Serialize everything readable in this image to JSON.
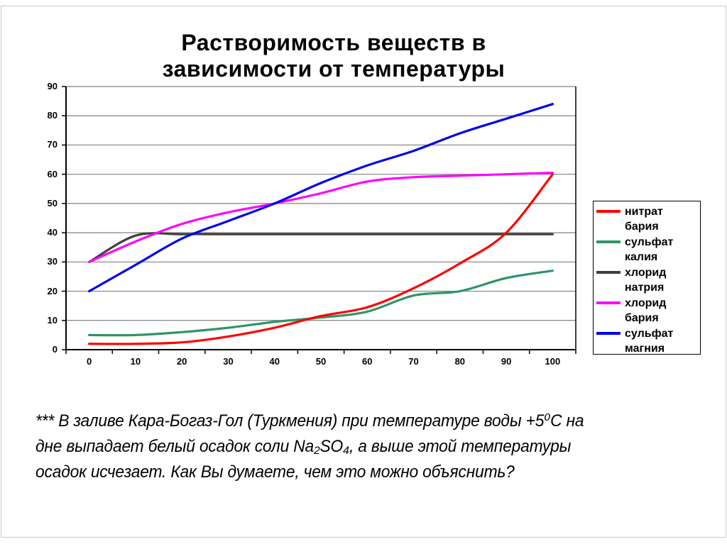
{
  "page": {
    "footnote_lines": [
      "*** В заливе Кара-Богаз-Гол (Туркмения) при температуре воды +5⁰С на",
      "дне выпадает белый осадок соли Na₂SO₄, а выше этой температуры",
      "осадок исчезает. Как Вы думаете, чем это можно объяснить?"
    ]
  },
  "chart_data": {
    "type": "line",
    "title": "Растворимость веществ в зависимости от температуры",
    "xlabel": "",
    "ylabel": "",
    "x": [
      0,
      10,
      20,
      30,
      40,
      50,
      60,
      70,
      80,
      90,
      100
    ],
    "ylim": [
      0,
      90
    ],
    "ytick_step": 10,
    "grid": true,
    "legend_position": "right",
    "axis_color": "#000000",
    "gridline_color": "#808080",
    "series": [
      {
        "name": "нитрат бария",
        "color": "#FF0000",
        "values": [
          2,
          2,
          2.5,
          4.5,
          7.5,
          11.5,
          14.5,
          21,
          29.5,
          40,
          60
        ]
      },
      {
        "name": "сульфат калия",
        "color": "#2E9566",
        "values": [
          5,
          5,
          6,
          7.5,
          9.5,
          11,
          13,
          18.5,
          20,
          24.5,
          27
        ]
      },
      {
        "name": "хлорид натрия",
        "color": "#3F3F3F",
        "values": [
          30,
          39,
          39.5,
          39.5,
          39.5,
          39.5,
          39.5,
          39.5,
          39.5,
          39.5,
          39.5
        ]
      },
      {
        "name": "хлорид бария",
        "color": "#FF00FF",
        "values": [
          30,
          37,
          43,
          47,
          50,
          53.5,
          57.5,
          59,
          59.5,
          60,
          60.5
        ]
      },
      {
        "name": "сульфат магния",
        "color": "#0000EE",
        "values": [
          20,
          29,
          38,
          44,
          50,
          57,
          63,
          68,
          74,
          79,
          84
        ]
      }
    ]
  }
}
